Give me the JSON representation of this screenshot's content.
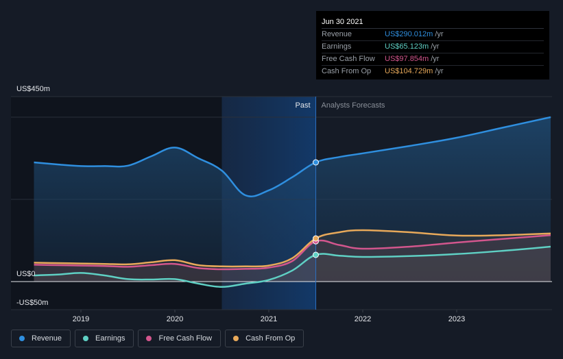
{
  "chart_data": {
    "type": "line",
    "x_axis": {
      "ticks": [
        "2019",
        "2020",
        "2021",
        "2022",
        "2023"
      ]
    },
    "y_axis": {
      "unit_prefix": "US$",
      "labels": [
        "US$450m",
        "US$0",
        "-US$50m"
      ],
      "range": [
        -50,
        450
      ]
    },
    "divider_label_past": "Past",
    "divider_label_forecast": "Analysts Forecasts",
    "series": [
      {
        "name": "Revenue",
        "color": "#2f8fdf",
        "points": [
          [
            2018.5,
            290
          ],
          [
            2018.75,
            285
          ],
          [
            2019.0,
            281
          ],
          [
            2019.25,
            281
          ],
          [
            2019.5,
            282
          ],
          [
            2019.75,
            305
          ],
          [
            2020.0,
            326
          ],
          [
            2020.25,
            300
          ],
          [
            2020.5,
            270
          ],
          [
            2020.75,
            210
          ],
          [
            2021.0,
            222
          ],
          [
            2021.25,
            254
          ],
          [
            2021.5,
            290
          ],
          [
            2021.75,
            303
          ],
          [
            2022.0,
            312
          ],
          [
            2022.5,
            330
          ],
          [
            2023.0,
            350
          ],
          [
            2023.5,
            375
          ],
          [
            2024.0,
            400
          ]
        ]
      },
      {
        "name": "Earnings",
        "color": "#5fd0c4",
        "points": [
          [
            2018.5,
            15
          ],
          [
            2018.75,
            17
          ],
          [
            2019.0,
            21
          ],
          [
            2019.25,
            15
          ],
          [
            2019.5,
            6
          ],
          [
            2019.75,
            5
          ],
          [
            2020.0,
            6
          ],
          [
            2020.25,
            -5
          ],
          [
            2020.5,
            -13
          ],
          [
            2020.75,
            -5
          ],
          [
            2021.0,
            4
          ],
          [
            2021.25,
            27
          ],
          [
            2021.5,
            65
          ],
          [
            2021.75,
            63
          ],
          [
            2022.0,
            60
          ],
          [
            2022.5,
            62
          ],
          [
            2023.0,
            67
          ],
          [
            2023.5,
            75
          ],
          [
            2024.0,
            85
          ]
        ]
      },
      {
        "name": "Free Cash Flow",
        "color": "#d3568d",
        "points": [
          [
            2018.5,
            41
          ],
          [
            2018.75,
            40
          ],
          [
            2019.0,
            39
          ],
          [
            2019.25,
            38
          ],
          [
            2019.5,
            36
          ],
          [
            2019.75,
            40
          ],
          [
            2020.0,
            43
          ],
          [
            2020.25,
            33
          ],
          [
            2020.5,
            30
          ],
          [
            2020.75,
            31
          ],
          [
            2021.0,
            34
          ],
          [
            2021.25,
            50
          ],
          [
            2021.5,
            98
          ],
          [
            2021.75,
            89
          ],
          [
            2022.0,
            80
          ],
          [
            2022.5,
            85
          ],
          [
            2023.0,
            95
          ],
          [
            2023.5,
            104
          ],
          [
            2024.0,
            113
          ]
        ]
      },
      {
        "name": "Cash From Op",
        "color": "#e8a95a",
        "points": [
          [
            2018.5,
            46
          ],
          [
            2018.75,
            45
          ],
          [
            2019.0,
            44
          ],
          [
            2019.25,
            43
          ],
          [
            2019.5,
            42
          ],
          [
            2019.75,
            47
          ],
          [
            2020.0,
            52
          ],
          [
            2020.25,
            40
          ],
          [
            2020.5,
            37
          ],
          [
            2020.75,
            37
          ],
          [
            2021.0,
            39
          ],
          [
            2021.25,
            57
          ],
          [
            2021.5,
            105
          ],
          [
            2021.75,
            120
          ],
          [
            2022.0,
            125
          ],
          [
            2022.5,
            120
          ],
          [
            2023.0,
            112
          ],
          [
            2023.5,
            113
          ],
          [
            2024.0,
            117
          ]
        ]
      }
    ],
    "highlight_x": 2021.5,
    "shaded_range_x": [
      2020.5,
      2021.5
    ]
  },
  "tooltip": {
    "date": "Jun 30 2021",
    "rows": [
      {
        "name": "Revenue",
        "value": "US$290.012m",
        "unit": "/yr",
        "color": "#2f8fdf"
      },
      {
        "name": "Earnings",
        "value": "US$65.123m",
        "unit": "/yr",
        "color": "#5fd0c4"
      },
      {
        "name": "Free Cash Flow",
        "value": "US$97.854m",
        "unit": "/yr",
        "color": "#d3568d"
      },
      {
        "name": "Cash From Op",
        "value": "US$104.729m",
        "unit": "/yr",
        "color": "#e8a95a"
      }
    ]
  },
  "legend": [
    {
      "label": "Revenue",
      "color": "#2f8fdf"
    },
    {
      "label": "Earnings",
      "color": "#5fd0c4"
    },
    {
      "label": "Free Cash Flow",
      "color": "#d3568d"
    },
    {
      "label": "Cash From Op",
      "color": "#e8a95a"
    }
  ]
}
